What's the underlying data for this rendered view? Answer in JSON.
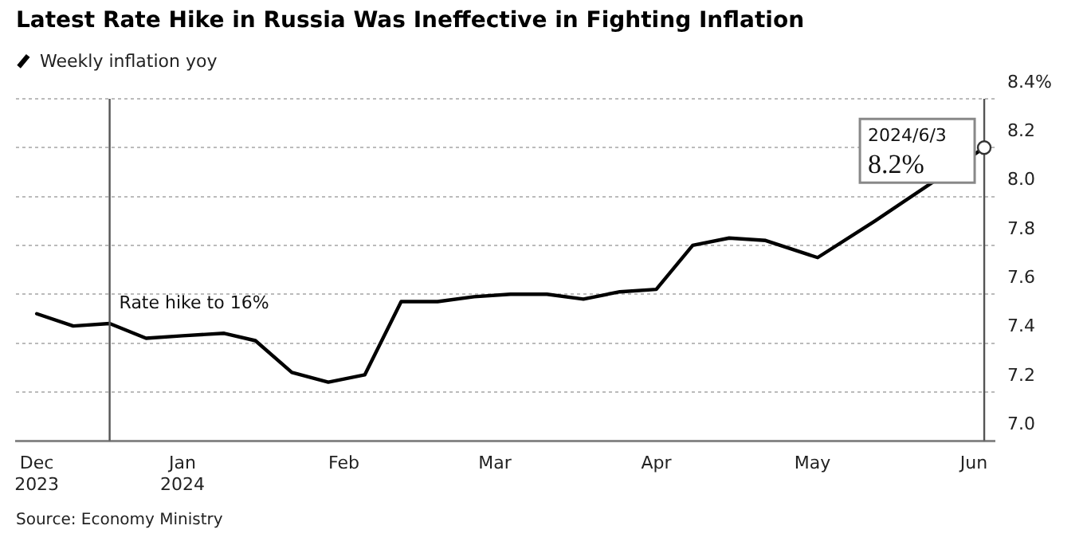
{
  "chart_data": {
    "type": "line",
    "title": "Latest Rate Hike in Russia Was Ineffective in Fighting Inflation",
    "x": [
      "2023-12-04",
      "2023-12-11",
      "2023-12-18",
      "2023-12-25",
      "2024-01-01",
      "2024-01-09",
      "2024-01-15",
      "2024-01-22",
      "2024-01-29",
      "2024-02-05",
      "2024-02-12",
      "2024-02-19",
      "2024-02-26",
      "2024-03-04",
      "2024-03-11",
      "2024-03-18",
      "2024-03-25",
      "2024-04-01",
      "2024-04-08",
      "2024-04-15",
      "2024-04-22",
      "2024-05-02",
      "2024-05-13",
      "2024-06-03"
    ],
    "series": [
      {
        "name": "Weekly inflation yoy",
        "color": "#000000",
        "values": [
          7.52,
          7.47,
          7.48,
          7.42,
          7.43,
          7.44,
          7.41,
          7.28,
          7.24,
          7.27,
          7.57,
          7.57,
          7.59,
          7.6,
          7.6,
          7.58,
          7.61,
          7.62,
          7.8,
          7.83,
          7.82,
          7.75,
          7.9,
          8.2
        ]
      }
    ],
    "xlim": [
      "2023-11-30",
      "2024-06-05"
    ],
    "xticks": [
      {
        "value": "2023-12-04",
        "label": "Dec\n2023"
      },
      {
        "value": "2024-01-01",
        "label": "Jan\n2024"
      },
      {
        "value": "2024-02-01",
        "label": "Feb"
      },
      {
        "value": "2024-03-01",
        "label": "Mar"
      },
      {
        "value": "2024-04-01",
        "label": "Apr"
      },
      {
        "value": "2024-05-01",
        "label": "May"
      },
      {
        "value": "2024-06-01",
        "label": "Jun"
      }
    ],
    "ylim": [
      7.0,
      8.4
    ],
    "yticks": [
      {
        "value": 7.0,
        "label": "7.0"
      },
      {
        "value": 7.2,
        "label": "7.2"
      },
      {
        "value": 7.4,
        "label": "7.4"
      },
      {
        "value": 7.6,
        "label": "7.6"
      },
      {
        "value": 7.8,
        "label": "7.8"
      },
      {
        "value": 8.0,
        "label": "8.0"
      },
      {
        "value": 8.2,
        "label": "8.2"
      },
      {
        "value": 8.4,
        "label": "8.4%"
      }
    ],
    "grid": "y",
    "legend": "top left",
    "marker": "none",
    "line_style": "solid",
    "ref_lines": [
      {
        "axis": "x",
        "value": "2023-12-18",
        "label": "Rate hike to 16%"
      },
      {
        "axis": "x",
        "value": "2024-06-03",
        "label": null
      }
    ],
    "annotations": [
      {
        "text": "2024/6/3\n8.2%",
        "x": "2024-06-03",
        "y": 8.2
      },
      "Source: Economy Ministry"
    ]
  }
}
